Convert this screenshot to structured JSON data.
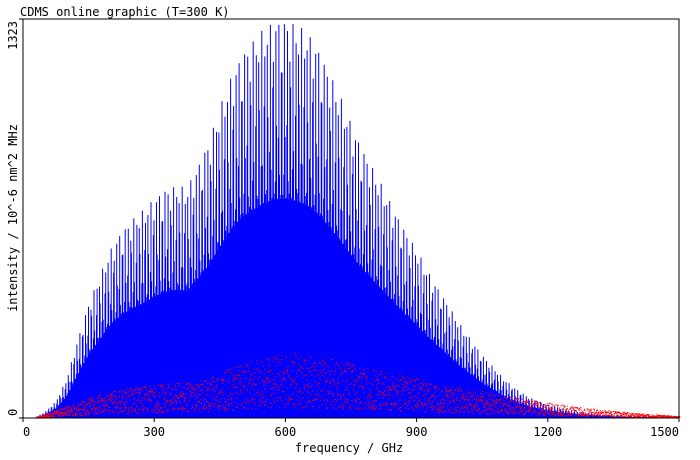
{
  "chart_data": {
    "type": "line",
    "title": "CDMS online graphic (T=300 K)",
    "xlabel": "frequency / GHz",
    "ylabel": "intensity / 10^-6 nm^2 MHz",
    "xlim": [
      0,
      1500
    ],
    "ylim": [
      0,
      1323
    ],
    "x_ticks": [
      "0",
      "300",
      "600",
      "900",
      "1200",
      "1500"
    ],
    "y_ticks": [
      "0",
      "1323"
    ],
    "grid": false,
    "legend": "none",
    "series": [
      {
        "color": "#0000ff",
        "style": "stick lines",
        "envelope": [
          [
            25,
            0
          ],
          [
            50,
            20
          ],
          [
            75,
            55
          ],
          [
            100,
            130
          ],
          [
            125,
            260
          ],
          [
            150,
            380
          ],
          [
            175,
            470
          ],
          [
            200,
            560
          ],
          [
            225,
            620
          ],
          [
            250,
            660
          ],
          [
            275,
            690
          ],
          [
            300,
            730
          ],
          [
            325,
            760
          ],
          [
            350,
            770
          ],
          [
            375,
            765
          ],
          [
            400,
            840
          ],
          [
            425,
            920
          ],
          [
            450,
            1030
          ],
          [
            475,
            1130
          ],
          [
            500,
            1210
          ],
          [
            525,
            1250
          ],
          [
            550,
            1290
          ],
          [
            575,
            1318
          ],
          [
            600,
            1323
          ],
          [
            625,
            1305
          ],
          [
            650,
            1280
          ],
          [
            675,
            1230
          ],
          [
            700,
            1150
          ],
          [
            725,
            1070
          ],
          [
            750,
            980
          ],
          [
            775,
            900
          ],
          [
            800,
            830
          ],
          [
            825,
            760
          ],
          [
            850,
            690
          ],
          [
            875,
            620
          ],
          [
            900,
            560
          ],
          [
            925,
            490
          ],
          [
            950,
            430
          ],
          [
            975,
            370
          ],
          [
            1000,
            310
          ],
          [
            1025,
            260
          ],
          [
            1050,
            210
          ],
          [
            1075,
            170
          ],
          [
            1100,
            130
          ],
          [
            1125,
            100
          ],
          [
            1150,
            75
          ],
          [
            1175,
            58
          ],
          [
            1200,
            45
          ],
          [
            1225,
            35
          ],
          [
            1250,
            27
          ],
          [
            1275,
            21
          ],
          [
            1300,
            16
          ],
          [
            1325,
            12
          ],
          [
            1350,
            9
          ],
          [
            1375,
            7
          ],
          [
            1400,
            5
          ],
          [
            1425,
            4
          ],
          [
            1450,
            3
          ],
          [
            1475,
            2
          ],
          [
            1500,
            1
          ]
        ]
      },
      {
        "color": "#ff0000",
        "style": "dots",
        "envelope": [
          [
            25,
            0
          ],
          [
            100,
            40
          ],
          [
            200,
            90
          ],
          [
            300,
            110
          ],
          [
            400,
            120
          ],
          [
            500,
            180
          ],
          [
            600,
            220
          ],
          [
            700,
            200
          ],
          [
            800,
            160
          ],
          [
            900,
            130
          ],
          [
            1000,
            100
          ],
          [
            1100,
            75
          ],
          [
            1200,
            50
          ],
          [
            1300,
            30
          ],
          [
            1400,
            15
          ],
          [
            1500,
            5
          ]
        ]
      }
    ]
  },
  "colors": {
    "axis": "#000000",
    "background": "#ffffff"
  }
}
